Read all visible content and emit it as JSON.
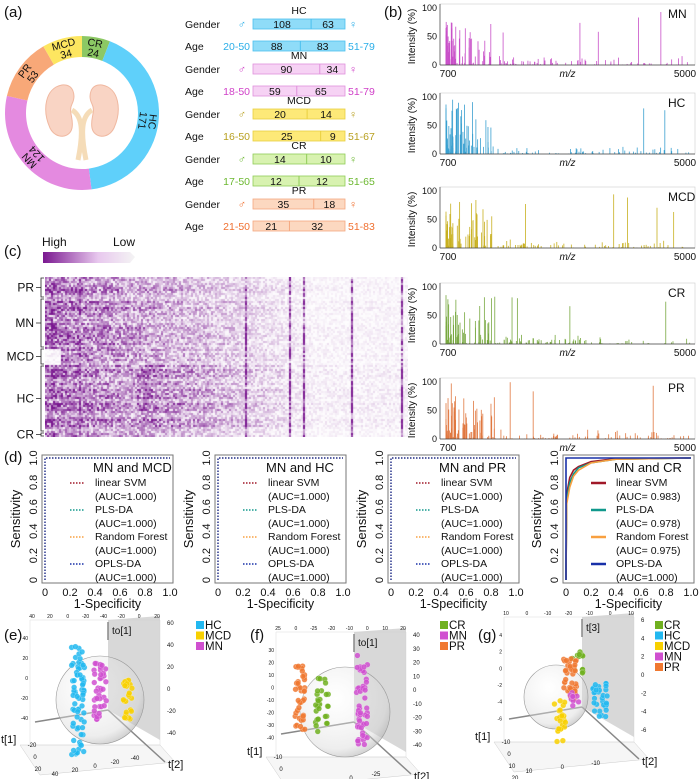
{
  "panel_labels": {
    "a": "(a)",
    "b": "(b)",
    "c": "(c)",
    "d": "(d)",
    "e": "(e)",
    "f": "(f)",
    "g": "(g)"
  },
  "symbols": {
    "male": "♂",
    "female": "♀"
  },
  "donut": {
    "segments": [
      {
        "name": "CR",
        "value": 24,
        "color": "#8cc864"
      },
      {
        "name": "HC",
        "value": 171,
        "color": "#5fd0fa"
      },
      {
        "name": "MN",
        "value": 124,
        "color": "#e48ae0"
      },
      {
        "name": "PR",
        "value": 53,
        "color": "#f8a878"
      },
      {
        "name": "MCD",
        "value": 34,
        "color": "#fde660"
      }
    ]
  },
  "demographics": {
    "gender_label": "Gender",
    "age_label": "Age",
    "groups": [
      {
        "name": "HC",
        "text_color": "#2aaee8",
        "bar_color": "#8fdcf8",
        "border": "#4cc0ee",
        "male": "108",
        "female": "63",
        "male_n": 108,
        "female_n": 63,
        "age_low": "20-50",
        "age_high": "51-79",
        "young": "88",
        "old": "83",
        "young_n": 88,
        "old_n": 83
      },
      {
        "name": "MN",
        "text_color": "#d040c8",
        "bar_color": "#f6d2f4",
        "border": "#e090dc",
        "male": "90",
        "female": "34",
        "male_n": 90,
        "female_n": 34,
        "age_low": "18-50",
        "age_high": "51-79",
        "young": "59",
        "old": "65",
        "young_n": 59,
        "old_n": 65
      },
      {
        "name": "MCD",
        "text_color": "#b8a020",
        "bar_color": "#fde978",
        "border": "#e8cf40",
        "male": "20",
        "female": "14",
        "male_n": 20,
        "female_n": 14,
        "age_low": "16-50",
        "age_high": "51-67",
        "young": "25",
        "old": "9",
        "young_n": 25,
        "old_n": 9
      },
      {
        "name": "CR",
        "text_color": "#6cb830",
        "bar_color": "#d8f2b0",
        "border": "#90cc58",
        "male": "14",
        "female": "10",
        "male_n": 14,
        "female_n": 10,
        "age_low": "17-50",
        "age_high": "51-65",
        "young": "12",
        "old": "12",
        "young_n": 12,
        "old_n": 12
      },
      {
        "name": "PR",
        "text_color": "#f07030",
        "bar_color": "#fcd8c0",
        "border": "#f4a880",
        "male": "35",
        "female": "18",
        "male_n": 35,
        "female_n": 18,
        "age_low": "21-50",
        "age_high": "51-83",
        "young": "21",
        "old": "32",
        "young_n": 21,
        "old_n": 32
      }
    ]
  },
  "spectra": {
    "type": "line",
    "ylabel": "Intensity (%)",
    "xlabel": "m/z",
    "x_ticks": [
      "700",
      "5000"
    ],
    "y_ticks": [
      "0",
      "50",
      "100"
    ],
    "xlim": [
      700,
      5000
    ],
    "ylim": [
      0,
      100
    ],
    "panels": [
      {
        "name": "MN",
        "color": "#c850c8"
      },
      {
        "name": "HC",
        "color": "#3aa0d0"
      },
      {
        "name": "MCD",
        "color": "#c8b020"
      },
      {
        "name": "CR",
        "color": "#78a840"
      },
      {
        "name": "PR",
        "color": "#e07840"
      }
    ]
  },
  "heatmap": {
    "high_label": "High",
    "low_label": "Low",
    "color": "#7a1890",
    "groups": [
      "PR",
      "MN",
      "MCD",
      "HC",
      "CR"
    ]
  },
  "chart_data": [
    {
      "type": "line",
      "title": "MN and MCD",
      "xlabel": "1-Specificity",
      "ylabel": "Sensitivity",
      "xlim": [
        0,
        1
      ],
      "ylim": [
        0,
        1
      ],
      "x_ticks": [
        "0",
        "0.2",
        "0.4",
        "0.6",
        "0.8",
        "1.0"
      ],
      "y_ticks": [
        "0",
        "0.2",
        "0.4",
        "0.6",
        "0.8",
        "1.0"
      ],
      "legend": "right",
      "line_style": "dotted",
      "series": [
        {
          "name": "linear SVM",
          "auc": "(AUC=1.000)",
          "color": "#a01828",
          "x": [
            0,
            0,
            1
          ],
          "y": [
            0,
            1,
            1
          ]
        },
        {
          "name": "PLS-DA",
          "auc": "(AUC=1.000)",
          "color": "#10988c",
          "x": [
            0,
            0,
            1
          ],
          "y": [
            0,
            1,
            1
          ]
        },
        {
          "name": "Random Forest",
          "auc": "(AUC=1.000)",
          "color": "#f8a040",
          "x": [
            0,
            0,
            1
          ],
          "y": [
            0,
            1,
            1
          ]
        },
        {
          "name": "OPLS-DA",
          "auc": "(AUC=1.000)",
          "color": "#1830a8",
          "x": [
            0,
            0,
            1
          ],
          "y": [
            0,
            1,
            1
          ]
        }
      ]
    },
    {
      "type": "line",
      "title": "MN and HC",
      "xlabel": "1-Specificity",
      "ylabel": "Sensitivity",
      "xlim": [
        0,
        1
      ],
      "ylim": [
        0,
        1
      ],
      "x_ticks": [
        "0",
        "0.2",
        "0.4",
        "0.6",
        "0.8",
        "1.0"
      ],
      "y_ticks": [
        "0",
        "0.2",
        "0.4",
        "0.6",
        "0.8",
        "1.0"
      ],
      "legend": "right",
      "line_style": "dotted",
      "series": [
        {
          "name": "linear SVM",
          "auc": "(AUC=1.000)",
          "color": "#a01828",
          "x": [
            0,
            0,
            1
          ],
          "y": [
            0,
            1,
            1
          ]
        },
        {
          "name": "PLS-DA",
          "auc": "(AUC=1.000)",
          "color": "#10988c",
          "x": [
            0,
            0,
            1
          ],
          "y": [
            0,
            1,
            1
          ]
        },
        {
          "name": "Random Forest",
          "auc": "(AUC=1.000)",
          "color": "#f8a040",
          "x": [
            0,
            0,
            1
          ],
          "y": [
            0,
            1,
            1
          ]
        },
        {
          "name": "OPLS-DA",
          "auc": "(AUC=1.000)",
          "color": "#1830a8",
          "x": [
            0,
            0,
            1
          ],
          "y": [
            0,
            1,
            1
          ]
        }
      ]
    },
    {
      "type": "line",
      "title": "MN and PR",
      "xlabel": "1-Specificity",
      "ylabel": "Sensitivity",
      "xlim": [
        0,
        1
      ],
      "ylim": [
        0,
        1
      ],
      "x_ticks": [
        "0",
        "0.2",
        "0.4",
        "0.6",
        "0.8",
        "1.0"
      ],
      "y_ticks": [
        "0",
        "0.2",
        "0.4",
        "0.6",
        "0.8",
        "1.0"
      ],
      "legend": "right",
      "line_style": "dotted",
      "series": [
        {
          "name": "linear SVM",
          "auc": "(AUC=1.000)",
          "color": "#a01828",
          "x": [
            0,
            0,
            1
          ],
          "y": [
            0,
            1,
            1
          ]
        },
        {
          "name": "PLS-DA",
          "auc": "(AUC=1.000)",
          "color": "#10988c",
          "x": [
            0,
            0,
            1
          ],
          "y": [
            0,
            1,
            1
          ]
        },
        {
          "name": "Random Forest",
          "auc": "(AUC=1.000)",
          "color": "#f8a040",
          "x": [
            0,
            0,
            1
          ],
          "y": [
            0,
            1,
            1
          ]
        },
        {
          "name": "OPLS-DA",
          "auc": "(AUC=1.000)",
          "color": "#1830a8",
          "x": [
            0,
            0,
            1
          ],
          "y": [
            0,
            1,
            1
          ]
        }
      ]
    },
    {
      "type": "line",
      "title": "MN and CR",
      "xlabel": "1-Specificity",
      "ylabel": "Sensitivity",
      "xlim": [
        0,
        1
      ],
      "ylim": [
        0,
        1
      ],
      "x_ticks": [
        "0",
        "0.2",
        "0.4",
        "0.6",
        "0.8",
        "1.0"
      ],
      "y_ticks": [
        "0",
        "0.2",
        "0.4",
        "0.6",
        "0.8",
        "1.0"
      ],
      "legend": "right",
      "line_style": "solid",
      "series": [
        {
          "name": "linear SVM",
          "auc": "(AUC= 0.983)",
          "color": "#a01828",
          "x": [
            0,
            0.005,
            0.03,
            0.06,
            0.1,
            0.2,
            0.4,
            1
          ],
          "y": [
            0,
            0.7,
            0.84,
            0.9,
            0.93,
            0.97,
            0.995,
            1
          ]
        },
        {
          "name": "PLS-DA",
          "auc": "(AUC= 0.978)",
          "color": "#10988c",
          "x": [
            0,
            0.005,
            0.03,
            0.06,
            0.1,
            0.2,
            0.4,
            1
          ],
          "y": [
            0,
            0.66,
            0.8,
            0.87,
            0.92,
            0.96,
            0.99,
            1
          ]
        },
        {
          "name": "Random Forest",
          "auc": "(AUC= 0.975)",
          "color": "#f8a040",
          "x": [
            0,
            0.005,
            0.03,
            0.06,
            0.1,
            0.2,
            0.4,
            1
          ],
          "y": [
            0,
            0.62,
            0.76,
            0.85,
            0.9,
            0.96,
            0.99,
            1
          ]
        },
        {
          "name": "OPLS-DA",
          "auc": "(AUC=1.000)",
          "color": "#1830a8",
          "x": [
            0,
            0,
            1
          ],
          "y": [
            0,
            1,
            1
          ]
        }
      ]
    }
  ],
  "scatter3d": [
    {
      "axes": {
        "x": "t[1]",
        "y": "t[2]",
        "z": "to[1]"
      },
      "ticks_z": [
        "60",
        "40",
        "20",
        "0",
        "-20",
        "-40"
      ],
      "ticks_top": [
        "40",
        "20",
        "0",
        "-20",
        "-40",
        "-20",
        "0",
        "20"
      ],
      "ticks_x": [
        "-20",
        "0",
        "20"
      ],
      "ticks_y": [
        "40",
        "20",
        "0",
        "-20",
        "-40"
      ],
      "legend": [
        {
          "name": "HC",
          "color": "#22b8f0"
        },
        {
          "name": "MCD",
          "color": "#f8d000"
        },
        {
          "name": "MN",
          "color": "#d050d0"
        }
      ]
    },
    {
      "axes": {
        "x": "t[1]",
        "y": "t[2]",
        "z": "to[1]"
      },
      "ticks_z": [
        "40",
        "30",
        "20",
        "10",
        "0",
        "-10",
        "-20",
        "-30",
        "-40"
      ],
      "ticks_top": [
        "25",
        "0",
        "-25",
        "-20",
        "-10",
        "0",
        "10",
        "20"
      ],
      "ticks_x": [
        "-10",
        "0",
        "10",
        "20"
      ],
      "ticks_y": [
        "50",
        "25",
        "0",
        "-25"
      ],
      "legend": [
        {
          "name": "CR",
          "color": "#70b020"
        },
        {
          "name": "MN",
          "color": "#d050d0"
        },
        {
          "name": "PR",
          "color": "#f07830"
        }
      ]
    },
    {
      "axes": {
        "x": "t[1]",
        "y": "t[2]",
        "z": "t[3]"
      },
      "ticks_z": [
        "6",
        "4",
        "2",
        "0",
        "-2",
        "-4",
        "-6"
      ],
      "ticks_top": [
        "10",
        "0",
        "-10",
        "-20",
        "-10",
        "0",
        "10"
      ],
      "ticks_x": [
        "-10",
        "0",
        "10",
        "20"
      ],
      "ticks_y": [
        "10",
        "0",
        "-10"
      ],
      "legend": [
        {
          "name": "CR",
          "color": "#70b020"
        },
        {
          "name": "HC",
          "color": "#22b8f0"
        },
        {
          "name": "MCD",
          "color": "#f8d000"
        },
        {
          "name": "MN",
          "color": "#d050d0"
        },
        {
          "name": "PR",
          "color": "#f07830"
        }
      ]
    }
  ]
}
